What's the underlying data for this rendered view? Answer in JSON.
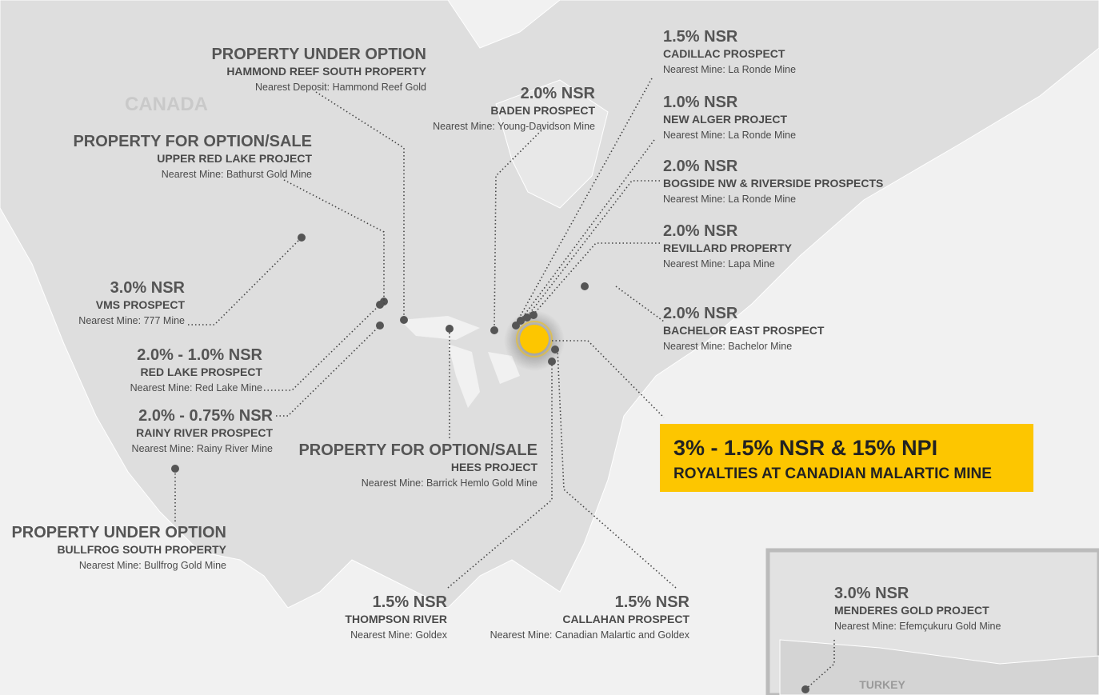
{
  "map": {
    "country_label": "CANADA",
    "inset_country_label": "TURKEY"
  },
  "callouts": [
    {
      "heading": "PROPERTY UNDER OPTION",
      "name": "HAMMOND REEF SOUTH PROPERTY",
      "nearest": "Nearest Deposit: Hammond Reef Gold"
    },
    {
      "heading": "2.0% NSR",
      "name": "BADEN PROSPECT",
      "nearest": "Nearest Mine: Young-Davidson Mine"
    },
    {
      "heading": "1.5% NSR",
      "name": "CADILLAC PROSPECT",
      "nearest": "Nearest Mine:  La Ronde Mine"
    },
    {
      "heading": "1.0% NSR",
      "name": "NEW ALGER PROJECT",
      "nearest": "Nearest Mine:  La Ronde Mine"
    },
    {
      "heading": "2.0% NSR",
      "name": "BOGSIDE NW & RIVERSIDE PROSPECTS",
      "nearest": "Nearest Mine:  La Ronde Mine"
    },
    {
      "heading": "2.0% NSR",
      "name": "REVILLARD PROPERTY",
      "nearest": "Nearest Mine:  Lapa Mine"
    },
    {
      "heading": "2.0% NSR",
      "name": "BACHELOR EAST PROSPECT",
      "nearest": "Nearest Mine:  Bachelor Mine"
    },
    {
      "heading": "3.0% NSR",
      "name": "VMS PROSPECT",
      "nearest": "Nearest Mine: 777 Mine"
    },
    {
      "heading": "2.0% - 1.0% NSR",
      "name": "RED LAKE PROSPECT",
      "nearest": "Nearest Mine:  Red Lake Mine"
    },
    {
      "heading": "2.0% - 0.75% NSR",
      "name": "RAINY RIVER PROSPECT",
      "nearest": "Nearest Mine:  Rainy River Mine"
    },
    {
      "heading": "PROPERTY FOR OPTION/SALE",
      "name": "UPPER RED LAKE PROJECT",
      "nearest": "Nearest Mine: Bathurst Gold Mine"
    },
    {
      "heading": "PROPERTY FOR OPTION/SALE",
      "name": "HEES PROJECT",
      "nearest": "Nearest Mine: Barrick Hemlo Gold Mine"
    },
    {
      "heading": "PROPERTY UNDER OPTION",
      "name": "BULLFROG SOUTH PROPERTY",
      "nearest": "Nearest Mine: Bullfrog Gold Mine"
    },
    {
      "heading": "1.5% NSR",
      "name": "THOMPSON RIVER",
      "nearest": "Nearest Mine:  Goldex"
    },
    {
      "heading": "1.5% NSR",
      "name": "CALLAHAN PROSPECT",
      "nearest": "Nearest Mine:  Canadian Malartic and Goldex"
    },
    {
      "heading": "3.0% NSR",
      "name": "MENDERES GOLD PROJECT",
      "nearest": "Nearest Mine:  Efemçukuru Gold Mine"
    }
  ],
  "highlight": {
    "heading": "3% - 1.5% NSR & 15% NPI",
    "subheading": "ROYALTIES AT CANADIAN MALARTIC MINE"
  }
}
